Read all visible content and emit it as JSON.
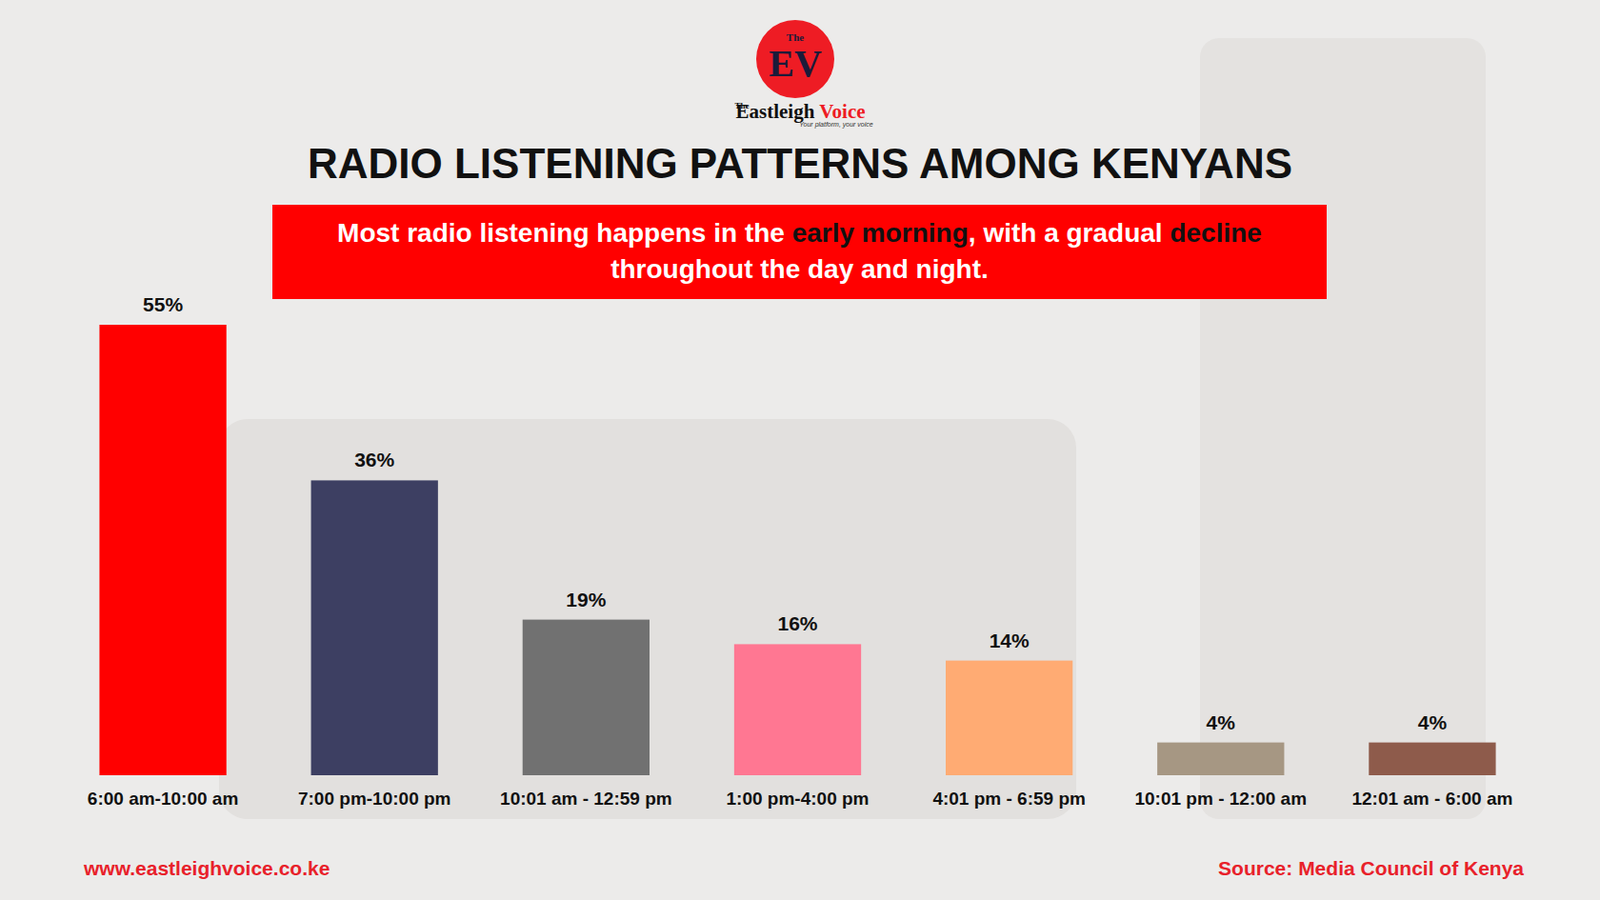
{
  "chart_data": {
    "type": "bar",
    "title": "RADIO LISTENING PATTERNS AMONG KENYANS",
    "subtitle": "Most radio listening happens in the early morning, with a gradual decline throughout the day and night.",
    "subtitle_highlights": [
      "early morning",
      "decline"
    ],
    "categories": [
      "6:00 am-10:00 am",
      "7:00 pm-10:00 pm",
      "10:01 am - 12:59 pm",
      "1:00 pm-4:00 pm",
      "4:01 pm - 6:59 pm",
      "10:01 pm - 12:00 am",
      "12:01 am - 6:00 am"
    ],
    "values": [
      55,
      36,
      19,
      16,
      14,
      4,
      4
    ],
    "value_labels": [
      "55%",
      "36%",
      "19%",
      "16%",
      "14%",
      "4%",
      "4%"
    ],
    "colors": [
      "#ff0000",
      "#3d3f62",
      "#717171",
      "#ff7792",
      "#ffab73",
      "#a69783",
      "#8e5b4b"
    ],
    "data_labels": true,
    "tick_labels": "x",
    "grid": false,
    "brand": {
      "logo_prefix": "The",
      "logo": "EV",
      "name_prefix": "The",
      "name": "Eastleigh",
      "name_accent": "Voice",
      "tagline": "Your platform, your voice"
    },
    "website": "www.eastleighvoice.co.ke",
    "source": "Source: Media Council of Kenya"
  }
}
